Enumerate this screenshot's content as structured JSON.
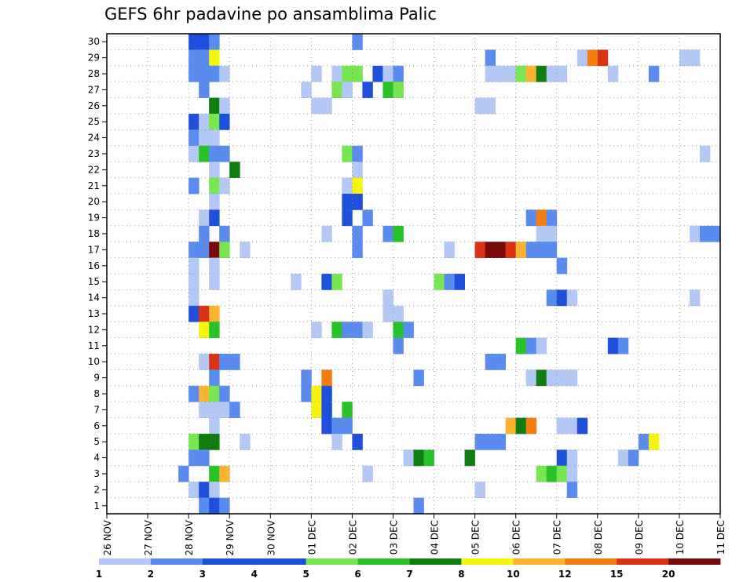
{
  "chart_data": {
    "type": "heatmap",
    "title": "GEFS 6hr padavine po ansamblima Palic",
    "xlabel": "",
    "ylabel": "",
    "x_tick_labels": [
      "26 NOV",
      "27 NOV",
      "28 NOV",
      "29 NOV",
      "30 NOV",
      "01 DEC",
      "02 DEC",
      "03 DEC",
      "04 DEC",
      "05 DEC",
      "06 DEC",
      "07 DEC",
      "08 DEC",
      "09 DEC",
      "10 DEC",
      "11 DEC"
    ],
    "y_tick_labels": [
      "1",
      "2",
      "3",
      "4",
      "5",
      "6",
      "7",
      "8",
      "9",
      "10",
      "11",
      "12",
      "13",
      "14",
      "15",
      "16",
      "17",
      "18",
      "19",
      "20",
      "21",
      "22",
      "23",
      "24",
      "25",
      "26",
      "27",
      "28",
      "29",
      "30"
    ],
    "y_range": [
      1,
      30
    ],
    "x_unit": "6-hour steps from 26 NOV 00Z",
    "x_range": [
      0,
      60
    ],
    "grid": true,
    "legend": {
      "placement": "bottom",
      "labels": [
        "1",
        "2",
        "3",
        "4",
        "5",
        "6",
        "7",
        "8",
        "10",
        "12",
        "15",
        "20"
      ],
      "colors": [
        "#b4c8f5",
        "#5a8cf0",
        "#1e50dc",
        "#1e50dc",
        "#78e650",
        "#28c328",
        "#0f7d0f",
        "#f5f50f",
        "#fab432",
        "#f57d0f",
        "#dc3214",
        "#780a0a"
      ]
    },
    "color_map": {
      "1": "#b4c8f5",
      "2": "#5a8cf0",
      "3": "#1e50dc",
      "5": "#78e650",
      "6": "#28c328",
      "7": "#0f7d0f",
      "8": "#f5f50f",
      "10": "#fab432",
      "12": "#f57d0f",
      "15": "#dc3214",
      "20": "#780a0a"
    },
    "cells": [
      {
        "m": 30,
        "c": [
          [
            8,
            3
          ],
          [
            9,
            3
          ],
          [
            10,
            2
          ],
          [
            24,
            2
          ]
        ]
      },
      {
        "m": 29,
        "c": [
          [
            8,
            2
          ],
          [
            9,
            2
          ],
          [
            10,
            8
          ],
          [
            37,
            2
          ],
          [
            46,
            1
          ],
          [
            47,
            12
          ],
          [
            48,
            15
          ],
          [
            56,
            1
          ],
          [
            57,
            1
          ]
        ]
      },
      {
        "m": 28,
        "c": [
          [
            8,
            2
          ],
          [
            9,
            2
          ],
          [
            10,
            2
          ],
          [
            11,
            1
          ],
          [
            20,
            1
          ],
          [
            22,
            1
          ],
          [
            23,
            5
          ],
          [
            24,
            5
          ],
          [
            26,
            3
          ],
          [
            27,
            1
          ],
          [
            28,
            2
          ],
          [
            37,
            1
          ],
          [
            38,
            1
          ],
          [
            39,
            1
          ],
          [
            40,
            5
          ],
          [
            41,
            10
          ],
          [
            42,
            7
          ],
          [
            43,
            1
          ],
          [
            44,
            1
          ],
          [
            49,
            1
          ],
          [
            53,
            2
          ]
        ]
      },
      {
        "m": 27,
        "c": [
          [
            9,
            2
          ],
          [
            19,
            1
          ],
          [
            22,
            5
          ],
          [
            23,
            1
          ],
          [
            25,
            3
          ],
          [
            27,
            6
          ],
          [
            28,
            5
          ]
        ]
      },
      {
        "m": 26,
        "c": [
          [
            10,
            7
          ],
          [
            11,
            1
          ],
          [
            20,
            1
          ],
          [
            21,
            1
          ],
          [
            36,
            1
          ],
          [
            37,
            1
          ]
        ]
      },
      {
        "m": 25,
        "c": [
          [
            8,
            3
          ],
          [
            9,
            1
          ],
          [
            10,
            5
          ],
          [
            11,
            3
          ]
        ]
      },
      {
        "m": 24,
        "c": [
          [
            8,
            2
          ],
          [
            9,
            1
          ],
          [
            10,
            1
          ]
        ]
      },
      {
        "m": 23,
        "c": [
          [
            8,
            1
          ],
          [
            9,
            6
          ],
          [
            10,
            2
          ],
          [
            11,
            2
          ],
          [
            23,
            5
          ],
          [
            24,
            2
          ],
          [
            58,
            1
          ]
        ]
      },
      {
        "m": 22,
        "c": [
          [
            10,
            1
          ],
          [
            12,
            7
          ],
          [
            24,
            1
          ]
        ]
      },
      {
        "m": 21,
        "c": [
          [
            8,
            2
          ],
          [
            10,
            5
          ],
          [
            11,
            1
          ],
          [
            23,
            1
          ],
          [
            24,
            8
          ]
        ]
      },
      {
        "m": 20,
        "c": [
          [
            10,
            1
          ],
          [
            23,
            3
          ],
          [
            24,
            3
          ]
        ]
      },
      {
        "m": 19,
        "c": [
          [
            9,
            1
          ],
          [
            10,
            3
          ],
          [
            23,
            3
          ],
          [
            25,
            2
          ],
          [
            41,
            2
          ],
          [
            42,
            12
          ],
          [
            43,
            2
          ]
        ]
      },
      {
        "m": 18,
        "c": [
          [
            9,
            2
          ],
          [
            11,
            2
          ],
          [
            21,
            1
          ],
          [
            24,
            2
          ],
          [
            27,
            2
          ],
          [
            28,
            6
          ],
          [
            42,
            1
          ],
          [
            43,
            1
          ],
          [
            57,
            1
          ],
          [
            58,
            2
          ],
          [
            59,
            2
          ]
        ]
      },
      {
        "m": 17,
        "c": [
          [
            8,
            2
          ],
          [
            9,
            2
          ],
          [
            10,
            20
          ],
          [
            11,
            5
          ],
          [
            13,
            1
          ],
          [
            24,
            2
          ],
          [
            33,
            1
          ],
          [
            36,
            15
          ],
          [
            37,
            20
          ],
          [
            38,
            20
          ],
          [
            39,
            15
          ],
          [
            40,
            10
          ],
          [
            41,
            2
          ],
          [
            42,
            2
          ],
          [
            43,
            2
          ]
        ]
      },
      {
        "m": 16,
        "c": [
          [
            8,
            1
          ],
          [
            10,
            1
          ],
          [
            44,
            2
          ]
        ]
      },
      {
        "m": 15,
        "c": [
          [
            8,
            1
          ],
          [
            10,
            1
          ],
          [
            18,
            1
          ],
          [
            21,
            3
          ],
          [
            22,
            5
          ],
          [
            32,
            5
          ],
          [
            33,
            2
          ],
          [
            34,
            3
          ]
        ]
      },
      {
        "m": 14,
        "c": [
          [
            8,
            1
          ],
          [
            27,
            1
          ],
          [
            43,
            2
          ],
          [
            44,
            3
          ],
          [
            45,
            1
          ],
          [
            57,
            1
          ]
        ]
      },
      {
        "m": 13,
        "c": [
          [
            8,
            3
          ],
          [
            9,
            15
          ],
          [
            10,
            10
          ],
          [
            27,
            1
          ],
          [
            28,
            1
          ]
        ]
      },
      {
        "m": 12,
        "c": [
          [
            9,
            8
          ],
          [
            10,
            6
          ],
          [
            20,
            1
          ],
          [
            22,
            6
          ],
          [
            23,
            2
          ],
          [
            24,
            2
          ],
          [
            25,
            1
          ],
          [
            28,
            6
          ],
          [
            29,
            2
          ]
        ]
      },
      {
        "m": 11,
        "c": [
          [
            28,
            2
          ],
          [
            40,
            6
          ],
          [
            41,
            2
          ],
          [
            42,
            1
          ],
          [
            49,
            3
          ],
          [
            50,
            2
          ]
        ]
      },
      {
        "m": 10,
        "c": [
          [
            9,
            1
          ],
          [
            10,
            15
          ],
          [
            11,
            2
          ],
          [
            12,
            2
          ],
          [
            37,
            2
          ],
          [
            38,
            2
          ]
        ]
      },
      {
        "m": 9,
        "c": [
          [
            10,
            2
          ],
          [
            19,
            2
          ],
          [
            21,
            12
          ],
          [
            30,
            2
          ],
          [
            41,
            1
          ],
          [
            42,
            7
          ],
          [
            43,
            1
          ],
          [
            44,
            1
          ],
          [
            45,
            1
          ]
        ]
      },
      {
        "m": 8,
        "c": [
          [
            8,
            2
          ],
          [
            9,
            10
          ],
          [
            10,
            5
          ],
          [
            11,
            2
          ],
          [
            19,
            2
          ],
          [
            20,
            8
          ],
          [
            21,
            3
          ]
        ]
      },
      {
        "m": 7,
        "c": [
          [
            9,
            1
          ],
          [
            10,
            1
          ],
          [
            11,
            1
          ],
          [
            12,
            2
          ],
          [
            20,
            8
          ],
          [
            21,
            3
          ],
          [
            23,
            6
          ]
        ]
      },
      {
        "m": 6,
        "c": [
          [
            10,
            1
          ],
          [
            21,
            3
          ],
          [
            22,
            2
          ],
          [
            23,
            2
          ],
          [
            39,
            10
          ],
          [
            40,
            7
          ],
          [
            41,
            12
          ],
          [
            44,
            1
          ],
          [
            45,
            1
          ],
          [
            46,
            3
          ]
        ]
      },
      {
        "m": 5,
        "c": [
          [
            8,
            5
          ],
          [
            9,
            7
          ],
          [
            10,
            7
          ],
          [
            13,
            1
          ],
          [
            22,
            1
          ],
          [
            24,
            3
          ],
          [
            36,
            2
          ],
          [
            37,
            2
          ],
          [
            38,
            2
          ],
          [
            52,
            2
          ],
          [
            53,
            8
          ]
        ]
      },
      {
        "m": 4,
        "c": [
          [
            8,
            2
          ],
          [
            9,
            2
          ],
          [
            29,
            1
          ],
          [
            30,
            7
          ],
          [
            31,
            6
          ],
          [
            35,
            7
          ],
          [
            44,
            3
          ],
          [
            45,
            1
          ],
          [
            50,
            1
          ],
          [
            51,
            2
          ]
        ]
      },
      {
        "m": 3,
        "c": [
          [
            7,
            2
          ],
          [
            10,
            6
          ],
          [
            11,
            10
          ],
          [
            25,
            1
          ],
          [
            42,
            5
          ],
          [
            43,
            6
          ],
          [
            44,
            5
          ],
          [
            45,
            1
          ]
        ]
      },
      {
        "m": 2,
        "c": [
          [
            8,
            1
          ],
          [
            9,
            3
          ],
          [
            10,
            1
          ],
          [
            36,
            1
          ],
          [
            45,
            2
          ]
        ]
      },
      {
        "m": 1,
        "c": [
          [
            9,
            2
          ],
          [
            10,
            3
          ],
          [
            11,
            2
          ],
          [
            30,
            2
          ]
        ]
      }
    ]
  }
}
